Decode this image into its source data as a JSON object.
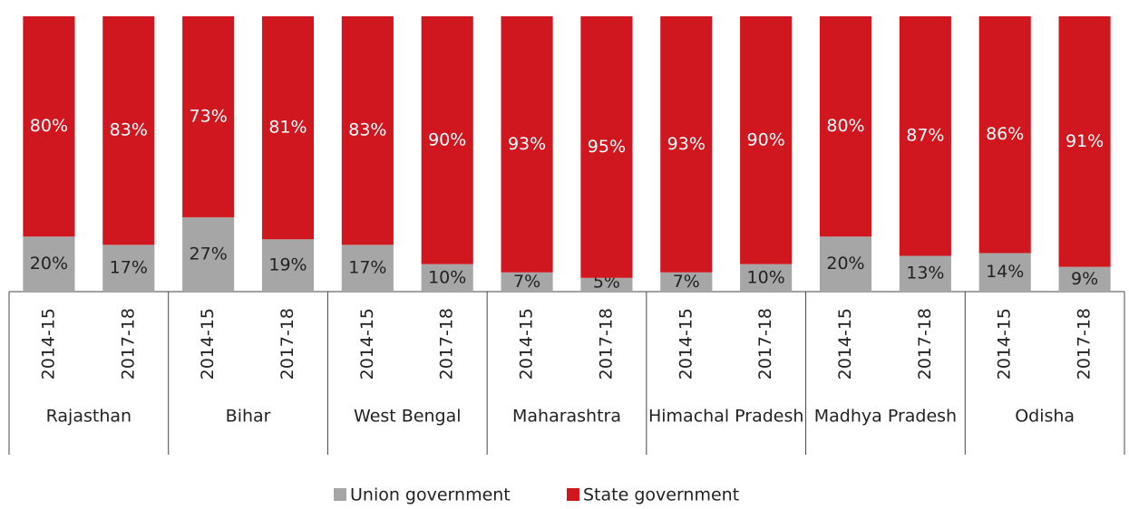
{
  "chart_data": {
    "type": "bar",
    "stacked": true,
    "categories": [
      "2014-15",
      "2017-18",
      "2014-15",
      "2017-18",
      "2014-15",
      "2017-18",
      "2014-15",
      "2017-18",
      "2014-15",
      "2017-18",
      "2014-15",
      "2017-18",
      "2014-15",
      "2017-18"
    ],
    "groups": [
      "Rajasthan",
      "Bihar",
      "West Bengal",
      "Maharashtra",
      "Himachal Pradesh",
      "Madhya Pradesh",
      "Odisha"
    ],
    "ylim": [
      0,
      100
    ],
    "series": [
      {
        "name": "Union government",
        "color": "#a6a6a6",
        "values": [
          20,
          17,
          27,
          19,
          17,
          10,
          7,
          5,
          7,
          10,
          20,
          13,
          14,
          9
        ],
        "value_labels": [
          "20%",
          "17%",
          "27%",
          "19%",
          "17%",
          "10%",
          "7%",
          "5%",
          "7%",
          "10%",
          "20%",
          "13%",
          "14%",
          "9%"
        ]
      },
      {
        "name": "State government",
        "color": "#d0161f",
        "values": [
          80,
          83,
          73,
          81,
          83,
          90,
          93,
          95,
          93,
          90,
          80,
          87,
          86,
          91
        ],
        "value_labels": [
          "80%",
          "83%",
          "73%",
          "81%",
          "83%",
          "90%",
          "93%",
          "95%",
          "93%",
          "90%",
          "80%",
          "87%",
          "86%",
          "91%"
        ]
      }
    ]
  }
}
